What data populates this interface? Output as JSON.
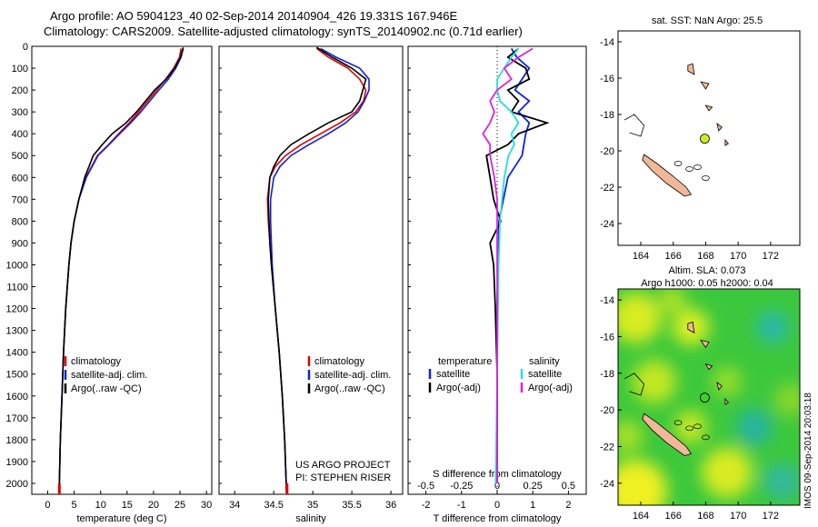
{
  "title_line1": "Argo profile: AO 5904123_40 02-Sep-2014 20140904_426 19.331S 167.946E",
  "title_line2": "Climatology: CARS2009. Satellite-adjusted climatology: synTS_20140902.nc (0.71d earlier)",
  "credit_line1": "US ARGO PROJECT",
  "credit_line2": "PI: STEPHEN RISER",
  "side_stamp": "IMOS 09-Sep-2014 20:03:18",
  "map_top_title": "sat. SST: NaN Argo: 25.5",
  "map_bottom_title1": "Altim. SLA: 0.073",
  "map_bottom_title2": "Argo h1000: 0.05 h2000: 0.04",
  "colors": {
    "climatology": "#e00000",
    "satellite": "#1020e0",
    "argo": "#000000",
    "sat_salinity": "#20e0e0",
    "argo_salinity": "#e020e0",
    "land": "#f0b898",
    "float_marker": "#c8f020"
  },
  "chart_data": [
    {
      "type": "line",
      "xlabel": "temperature (deg C)",
      "ylabel": "",
      "xlim": [
        -3,
        31
      ],
      "ylim": [
        2050,
        0
      ],
      "xticks": [
        0,
        5,
        10,
        15,
        20,
        25,
        30
      ],
      "yticks": [
        0,
        100,
        200,
        300,
        400,
        500,
        600,
        700,
        800,
        900,
        1000,
        1100,
        1200,
        1300,
        1400,
        1500,
        1600,
        1700,
        1800,
        1900,
        2000
      ],
      "legend": [
        "climatology",
        "satellite-adj. clim.",
        "Argo(..raw -QC)"
      ],
      "legend_position": "lower-left",
      "series": [
        {
          "name": "climatology",
          "depth": [
            10,
            50,
            100,
            150,
            200,
            250,
            300,
            350,
            400,
            450,
            500,
            600,
            700,
            800,
            900,
            1000,
            1200,
            1400,
            1600,
            1800,
            2000,
            2040
          ],
          "values": [
            25.2,
            24.9,
            23.8,
            22.3,
            20.6,
            18.9,
            17.2,
            15.4,
            13.4,
            11.5,
            9.4,
            7.2,
            5.9,
            5.0,
            4.4,
            4.0,
            3.4,
            3.0,
            2.7,
            2.4,
            2.2,
            2.2
          ]
        },
        {
          "name": "satellite-adj. clim.",
          "depth": [
            10,
            50,
            100,
            150,
            200,
            250,
            300,
            350,
            400,
            450,
            500,
            600,
            700,
            800,
            900,
            1000,
            1200,
            1400,
            1600,
            1800,
            2000,
            2040
          ],
          "values": [
            25.6,
            25.2,
            24.2,
            22.8,
            21.0,
            19.3,
            17.6,
            15.7,
            13.6,
            11.6,
            9.5,
            7.3,
            5.9,
            5.0,
            4.4,
            4.0,
            3.4,
            3.0,
            2.7,
            2.4,
            2.2,
            2.2
          ]
        },
        {
          "name": "Argo(..raw -QC)",
          "depth": [
            5,
            50,
            100,
            150,
            200,
            250,
            300,
            350,
            400,
            450,
            500,
            550,
            600,
            700,
            800,
            900,
            1000,
            1200,
            1400,
            1600,
            1800,
            2000,
            2030
          ],
          "values": [
            25.6,
            25.1,
            24.0,
            22.4,
            20.2,
            18.5,
            16.8,
            14.8,
            12.2,
            10.3,
            8.6,
            7.8,
            7.0,
            5.9,
            5.0,
            4.4,
            4.0,
            3.4,
            3.0,
            2.7,
            2.4,
            2.2,
            2.2
          ]
        }
      ]
    },
    {
      "type": "line",
      "xlabel": "salinity",
      "ylabel": "",
      "xlim": [
        33.8,
        36.15
      ],
      "ylim": [
        2050,
        0
      ],
      "xticks": [
        34,
        34.5,
        35,
        35.5,
        36
      ],
      "legend": [
        "climatology",
        "satellite-adj. clim.",
        "Argo(..raw -QC)"
      ],
      "legend_position": "lower-right",
      "series": [
        {
          "name": "climatology",
          "depth": [
            10,
            50,
            100,
            150,
            200,
            250,
            300,
            350,
            400,
            450,
            500,
            550,
            600,
            700,
            800,
            900,
            1000,
            1200,
            1400,
            1600,
            1800,
            2000,
            2040
          ],
          "values": [
            35.05,
            35.2,
            35.45,
            35.6,
            35.68,
            35.65,
            35.55,
            35.35,
            35.1,
            34.85,
            34.65,
            34.52,
            34.45,
            34.42,
            34.43,
            34.45,
            34.47,
            34.52,
            34.57,
            34.61,
            34.64,
            34.66,
            34.67
          ]
        },
        {
          "name": "satellite-adj. clim.",
          "depth": [
            10,
            50,
            100,
            150,
            200,
            250,
            300,
            350,
            400,
            450,
            500,
            550,
            600,
            700,
            800,
            900,
            1000,
            1200,
            1400,
            1600,
            1800,
            2000,
            2040
          ],
          "values": [
            35.1,
            35.3,
            35.6,
            35.72,
            35.72,
            35.66,
            35.58,
            35.42,
            35.2,
            34.95,
            34.72,
            34.58,
            34.5,
            34.46,
            34.46,
            34.47,
            34.48,
            34.52,
            34.57,
            34.61,
            34.64,
            34.66,
            34.66
          ]
        },
        {
          "name": "Argo(..raw -QC)",
          "depth": [
            5,
            50,
            100,
            150,
            200,
            250,
            300,
            350,
            400,
            450,
            500,
            550,
            600,
            700,
            800,
            900,
            1000,
            1200,
            1400,
            1600,
            1800,
            2000,
            2030
          ],
          "values": [
            35.05,
            35.25,
            35.5,
            35.68,
            35.64,
            35.6,
            35.5,
            35.2,
            34.95,
            34.72,
            34.58,
            34.5,
            34.45,
            34.43,
            34.44,
            34.45,
            34.47,
            34.52,
            34.57,
            34.61,
            34.64,
            34.66,
            34.66
          ]
        }
      ]
    },
    {
      "type": "line",
      "xlabel": "T difference from climatology",
      "x2label": "S difference from climatology",
      "xlim": [
        -2.5,
        2.5
      ],
      "x2lim": [
        -0.625,
        0.625
      ],
      "ylim": [
        2050,
        0
      ],
      "xticks": [
        -2,
        -1,
        0,
        1,
        2
      ],
      "x2ticks": [
        -0.5,
        -0.25,
        0,
        0.25,
        0.5
      ],
      "legend": [
        "temperature",
        "satellite",
        "Argo(-adj)",
        "salinity",
        "satellite",
        "Argo(-adj)"
      ],
      "series": [
        {
          "name": "satellite",
          "group": "temperature",
          "depth": [
            10,
            50,
            100,
            150,
            200,
            250,
            300,
            350,
            400,
            500,
            600,
            800,
            1000,
            1200,
            1500,
            2000
          ],
          "values": [
            0.4,
            0.55,
            0.9,
            0.7,
            0.5,
            0.9,
            0.6,
            0.9,
            0.8,
            0.7,
            0.3,
            0.05,
            0.02,
            0.0,
            0.0,
            0.0
          ]
        },
        {
          "name": "Argo(-adj)",
          "group": "temperature",
          "depth": [
            10,
            50,
            100,
            150,
            200,
            250,
            300,
            350,
            400,
            450,
            500,
            600,
            700,
            800,
            900,
            1000,
            1200,
            1500,
            2000
          ],
          "values": [
            0.6,
            0.3,
            0.8,
            0.9,
            0.3,
            0.6,
            0.4,
            1.4,
            0.6,
            0.3,
            -0.3,
            -0.2,
            -0.1,
            0.1,
            -0.2,
            -0.1,
            -0.05,
            0.0,
            0.0
          ]
        },
        {
          "name": "satellite",
          "group": "salinity",
          "depth": [
            10,
            50,
            100,
            150,
            200,
            250,
            300,
            350,
            400,
            450,
            500,
            600,
            800,
            1000,
            1500,
            2000
          ],
          "values": [
            0.15,
            0.1,
            0.05,
            0.0,
            0.0,
            0.02,
            0.1,
            0.15,
            0.1,
            0.12,
            0.08,
            0.05,
            0.02,
            0.01,
            0.0,
            -0.01
          ]
        },
        {
          "name": "Argo(-adj)",
          "group": "salinity",
          "depth": [
            10,
            50,
            100,
            150,
            200,
            250,
            300,
            350,
            400,
            450,
            500,
            600,
            700,
            800,
            1000,
            1500,
            2000
          ],
          "values": [
            0.25,
            0.15,
            0.05,
            0.1,
            0.0,
            -0.05,
            -0.02,
            -0.05,
            -0.1,
            -0.05,
            -0.05,
            -0.02,
            0.0,
            0.0,
            0.0,
            0.0,
            0.0
          ]
        }
      ]
    },
    {
      "type": "scatter",
      "title": "sat. SST: NaN Argo: 25.5",
      "xlim": [
        162.6,
        173.8
      ],
      "ylim": [
        -25.2,
        -13.4
      ],
      "xticks": [
        164,
        166,
        168,
        170,
        172
      ],
      "yticks": [
        -14,
        -16,
        -18,
        -20,
        -22,
        -24
      ],
      "points": [
        {
          "lon": 167.946,
          "lat": -19.331
        }
      ]
    },
    {
      "type": "heatmap",
      "title": "Altim. SLA: 0.073",
      "xlim": [
        162.6,
        173.8
      ],
      "ylim": [
        -25.2,
        -13.4
      ],
      "xticks": [
        164,
        166,
        168,
        170,
        172
      ],
      "yticks": [
        -14,
        -16,
        -18,
        -20,
        -22,
        -24
      ],
      "points": [
        {
          "lon": 167.946,
          "lat": -19.331
        }
      ]
    }
  ]
}
